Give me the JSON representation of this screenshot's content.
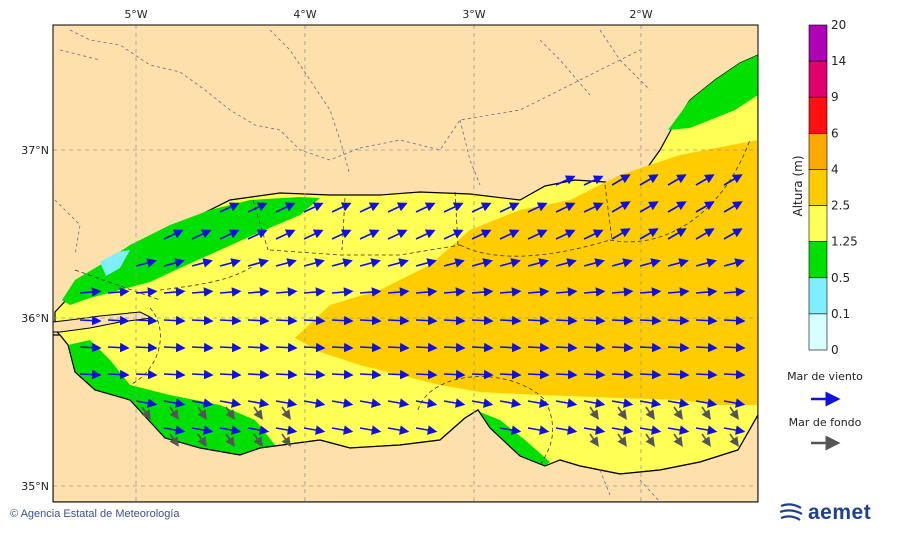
{
  "map": {
    "lon_labels": [
      "5°W",
      "4°W",
      "3°W",
      "2°W"
    ],
    "lat_labels": [
      "37°N",
      "36°N",
      "35°N"
    ]
  },
  "legend": {
    "title": "Altura (m)",
    "ticks": [
      "20",
      "14",
      "9",
      "6",
      "4",
      "2.5",
      "1.25",
      "0.5",
      "0.1",
      "0"
    ],
    "colors": [
      "#b000b8",
      "#e0006e",
      "#ff1010",
      "#ffaa00",
      "#ffcc00",
      "#ffff55",
      "#00e000",
      "#7fefff",
      "#d8ffff"
    ],
    "wind_sea_label": "Mar de viento",
    "swell_label": "Mar de fondo",
    "wind_sea_color": "#1010e0",
    "swell_color": "#555555"
  },
  "footer": {
    "credit": "Agencia Estatal de Meteorología",
    "brand": "aemet"
  }
}
